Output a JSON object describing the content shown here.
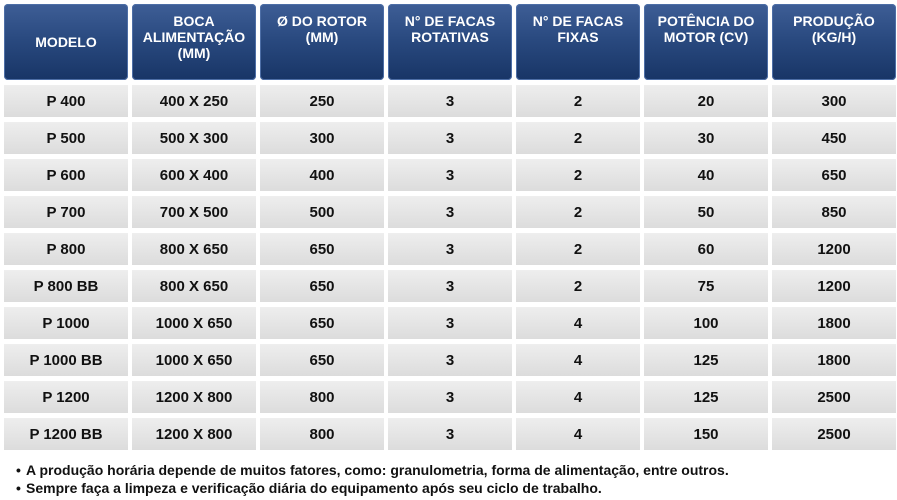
{
  "table": {
    "headers": [
      "MODELO",
      "BOCA\nALIMENTAÇÃO\n(MM)",
      "Ø DO ROTOR\n(MM)",
      "N° DE FACAS\nROTATIVAS",
      "N° DE FACAS\nFIXAS",
      "POTÊNCIA DO\nMOTOR (CV)",
      "PRODUÇÃO\n(KG/H)"
    ],
    "rows": [
      [
        "P 400",
        "400 X 250",
        "250",
        "3",
        "2",
        "20",
        "300"
      ],
      [
        "P 500",
        "500 X 300",
        "300",
        "3",
        "2",
        "30",
        "450"
      ],
      [
        "P 600",
        "600 X 400",
        "400",
        "3",
        "2",
        "40",
        "650"
      ],
      [
        "P 700",
        "700 X 500",
        "500",
        "3",
        "2",
        "50",
        "850"
      ],
      [
        "P 800",
        "800 X 650",
        "650",
        "3",
        "2",
        "60",
        "1200"
      ],
      [
        "P 800 BB",
        "800 X 650",
        "650",
        "3",
        "2",
        "75",
        "1200"
      ],
      [
        "P 1000",
        "1000 X 650",
        "650",
        "3",
        "4",
        "100",
        "1800"
      ],
      [
        "P 1000 BB",
        "1000 X 650",
        "650",
        "3",
        "4",
        "125",
        "1800"
      ],
      [
        "P 1200",
        "1200 X 800",
        "800",
        "3",
        "4",
        "125",
        "2500"
      ],
      [
        "P 1200 BB",
        "1200 X 800",
        "800",
        "3",
        "4",
        "150",
        "2500"
      ]
    ]
  },
  "notes": [
    "A produção horária depende de muitos fatores, como: granulometria, forma de alimentação, entre outros.",
    "Sempre faça a limpeza e verificação diária do equipamento após seu ciclo de trabalho."
  ]
}
